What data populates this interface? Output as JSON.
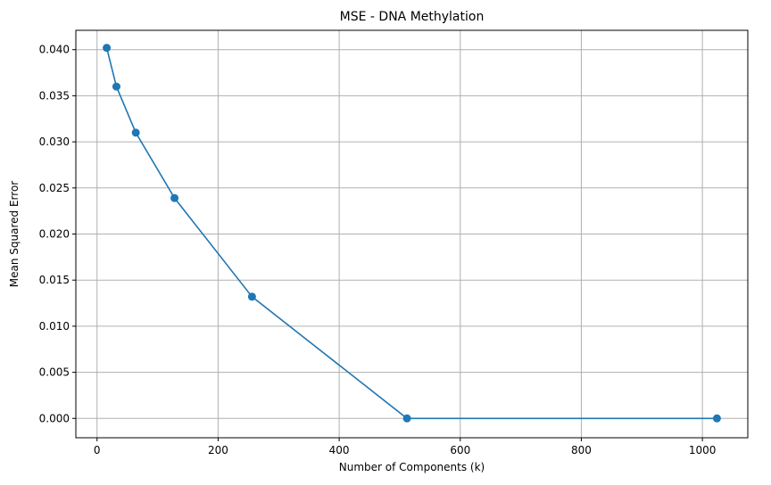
{
  "chart_data": {
    "type": "line",
    "title": "MSE - DNA Methylation",
    "xlabel": "Number of Components (k)",
    "ylabel": "Mean Squared Error",
    "xlim": [
      -35,
      1075
    ],
    "ylim": [
      -0.0021,
      0.0421
    ],
    "xticks": [
      0,
      200,
      400,
      600,
      800,
      1000
    ],
    "yticks": [
      0.0,
      0.005,
      0.01,
      0.015,
      0.02,
      0.025,
      0.03,
      0.035,
      0.04
    ],
    "ytick_labels": [
      "0.000",
      "0.005",
      "0.010",
      "0.015",
      "0.020",
      "0.025",
      "0.030",
      "0.035",
      "0.040"
    ],
    "xtick_labels": [
      "0",
      "200",
      "400",
      "600",
      "800",
      "1000"
    ],
    "grid": true,
    "series": [
      {
        "x": [
          16,
          32,
          64,
          128,
          256,
          512,
          1024
        ],
        "y": [
          0.0402,
          0.036,
          0.031,
          0.0239,
          0.0132,
          0.0,
          0.0
        ],
        "color": "#1f77b4",
        "marker": "circle"
      }
    ]
  }
}
